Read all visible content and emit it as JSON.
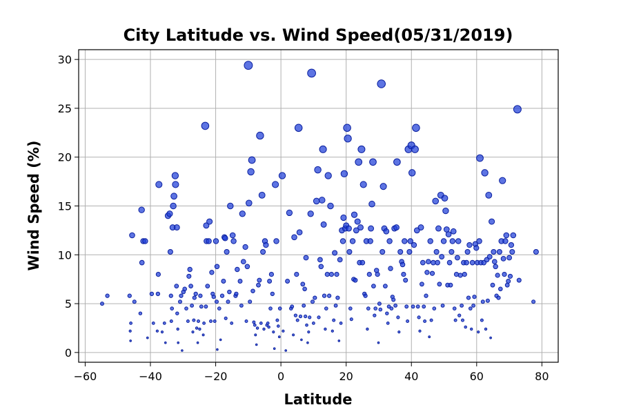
{
  "chart_data": {
    "type": "scatter",
    "title": "City Latitude vs. Wind Speed(05/31/2019)",
    "xlabel": "Latitude",
    "ylabel": "Wind Speed (%)",
    "xlim": [
      -62,
      85
    ],
    "ylim": [
      -1,
      31
    ],
    "xticks": [
      -60,
      -40,
      -20,
      0,
      20,
      40,
      60,
      80
    ],
    "yticks": [
      0,
      5,
      10,
      15,
      20,
      25,
      30
    ],
    "grid": true,
    "legend": "none",
    "colors": {
      "fill": "#1f3fd8",
      "edge": "#0a1f9e",
      "grid": "#b0b0b0"
    },
    "points": [
      [
        -54.8,
        5.0
      ],
      [
        -53.2,
        5.8
      ],
      [
        -46.4,
        5.8
      ],
      [
        -46.0,
        3.0
      ],
      [
        -46.2,
        2.2
      ],
      [
        -46.1,
        1.2
      ],
      [
        -45.6,
        12.0
      ],
      [
        -44.9,
        5.2
      ],
      [
        -43.1,
        4.0
      ],
      [
        -42.6,
        9.2
      ],
      [
        -42.7,
        14.6
      ],
      [
        -42.2,
        11.4
      ],
      [
        -41.6,
        11.4
      ],
      [
        -40.9,
        1.5
      ],
      [
        -39.6,
        6.0
      ],
      [
        -39.1,
        3.0
      ],
      [
        -37.9,
        2.2
      ],
      [
        -37.7,
        6.0
      ],
      [
        -37.4,
        17.2
      ],
      [
        -37.6,
        8.0
      ],
      [
        -36.4,
        2.1
      ],
      [
        -35.7,
        3.0
      ],
      [
        -35.4,
        1.0
      ],
      [
        -34.6,
        14.0
      ],
      [
        -34.1,
        14.2
      ],
      [
        -33.9,
        10.3
      ],
      [
        -33.7,
        5.8
      ],
      [
        -33.4,
        4.5
      ],
      [
        -33.6,
        3.2
      ],
      [
        -33.2,
        12.8
      ],
      [
        -33.0,
        15.0
      ],
      [
        -32.8,
        16.0
      ],
      [
        -32.4,
        18.1
      ],
      [
        -32.3,
        17.2
      ],
      [
        -31.9,
        12.8
      ],
      [
        -32.0,
        6.8
      ],
      [
        -31.8,
        4.0
      ],
      [
        -31.6,
        2.4
      ],
      [
        -31.5,
        1.0
      ],
      [
        -30.9,
        5.2
      ],
      [
        -30.6,
        5.8
      ],
      [
        -30.3,
        0.2
      ],
      [
        -29.9,
        6.2
      ],
      [
        -29.5,
        6.5
      ],
      [
        -29.0,
        4.5
      ],
      [
        -28.5,
        3.2
      ],
      [
        -28.2,
        7.8
      ],
      [
        -27.9,
        8.5
      ],
      [
        -27.6,
        6.8
      ],
      [
        -27.3,
        4.8
      ],
      [
        -27.0,
        2.1
      ],
      [
        -26.7,
        3.3
      ],
      [
        -26.5,
        5.6
      ],
      [
        -26.1,
        6.0
      ],
      [
        -25.8,
        2.5
      ],
      [
        -25.5,
        1.0
      ],
      [
        -25.3,
        3.2
      ],
      [
        -24.9,
        2.4
      ],
      [
        -24.7,
        5.8
      ],
      [
        -24.4,
        4.7
      ],
      [
        -23.8,
        1.8
      ],
      [
        -23.6,
        3.0
      ],
      [
        -23.2,
        23.2
      ],
      [
        -22.9,
        13.0
      ],
      [
        -22.8,
        11.4
      ],
      [
        -23.0,
        4.7
      ],
      [
        -22.5,
        6.8
      ],
      [
        -22.1,
        11.4
      ],
      [
        -21.9,
        13.4
      ],
      [
        -21.5,
        3.2
      ],
      [
        -21.2,
        8.2
      ],
      [
        -20.9,
        6.0
      ],
      [
        -20.6,
        5.7
      ],
      [
        -20.3,
        3.2
      ],
      [
        -19.9,
        11.4
      ],
      [
        -19.7,
        5.2
      ],
      [
        -19.5,
        0.3
      ],
      [
        -19.6,
        8.8
      ],
      [
        -18.9,
        4.5
      ],
      [
        -18.5,
        1.3
      ],
      [
        -18.0,
        5.8
      ],
      [
        -17.6,
        7.3
      ],
      [
        -17.3,
        11.8
      ],
      [
        -17.1,
        11.7
      ],
      [
        -16.9,
        3.5
      ],
      [
        -16.6,
        10.3
      ],
      [
        -16.2,
        5.2
      ],
      [
        -15.8,
        6.2
      ],
      [
        -15.5,
        15.0
      ],
      [
        -15.1,
        3.0
      ],
      [
        -14.8,
        12.0
      ],
      [
        -14.5,
        11.4
      ],
      [
        -13.9,
        5.8
      ],
      [
        -13.7,
        6.0
      ],
      [
        -13.4,
        8.5
      ],
      [
        -12.5,
        7.3
      ],
      [
        -12.1,
        4.8
      ],
      [
        -11.8,
        14.2
      ],
      [
        -11.5,
        9.3
      ],
      [
        -10.9,
        10.8
      ],
      [
        -10.6,
        3.2
      ],
      [
        -10.3,
        8.8
      ],
      [
        -10.0,
        29.4
      ],
      [
        -9.8,
        15.3
      ],
      [
        -9.5,
        5.2
      ],
      [
        -9.2,
        18.5
      ],
      [
        -8.9,
        19.7
      ],
      [
        -8.6,
        6.3
      ],
      [
        -8.3,
        3.1
      ],
      [
        -8.0,
        2.8
      ],
      [
        -7.8,
        1.8
      ],
      [
        -7.5,
        0.8
      ],
      [
        -7.2,
        2.5
      ],
      [
        -6.9,
        6.9
      ],
      [
        -6.6,
        7.4
      ],
      [
        -6.4,
        22.2
      ],
      [
        -6.1,
        3.0
      ],
      [
        -5.8,
        16.1
      ],
      [
        -5.5,
        10.3
      ],
      [
        -5.2,
        2.4
      ],
      [
        -4.9,
        11.4
      ],
      [
        -4.6,
        11.0
      ],
      [
        -4.3,
        2.8
      ],
      [
        -4.0,
        3.0
      ],
      [
        -3.7,
        2.6
      ],
      [
        -3.5,
        7.3
      ],
      [
        -3.2,
        4.5
      ],
      [
        -2.9,
        8.0
      ],
      [
        -2.6,
        6.0
      ],
      [
        -2.3,
        2.1
      ],
      [
        -2.0,
        0.4
      ],
      [
        -1.7,
        17.2
      ],
      [
        -1.4,
        11.4
      ],
      [
        -1.1,
        3.3
      ],
      [
        -0.8,
        2.7
      ],
      [
        -0.5,
        1.6
      ],
      [
        -0.3,
        4.5
      ],
      [
        0.4,
        18.1
      ],
      [
        0.7,
        2.2
      ],
      [
        1.5,
        0.2
      ],
      [
        2.0,
        7.3
      ],
      [
        2.6,
        14.3
      ],
      [
        3.1,
        4.5
      ],
      [
        3.4,
        4.7
      ],
      [
        3.8,
        1.8
      ],
      [
        4.1,
        11.8
      ],
      [
        4.5,
        3.8
      ],
      [
        4.8,
        8.0
      ],
      [
        5.1,
        3.3
      ],
      [
        5.4,
        23.0
      ],
      [
        5.7,
        12.3
      ],
      [
        6.0,
        3.7
      ],
      [
        6.3,
        1.3
      ],
      [
        6.7,
        7.0
      ],
      [
        7.0,
        4.8
      ],
      [
        7.3,
        6.5
      ],
      [
        7.5,
        3.7
      ],
      [
        7.7,
        9.7
      ],
      [
        7.9,
        2.8
      ],
      [
        8.2,
        1.0
      ],
      [
        8.5,
        2.1
      ],
      [
        8.8,
        3.6
      ],
      [
        9.1,
        14.2
      ],
      [
        9.4,
        28.6
      ],
      [
        9.7,
        5.2
      ],
      [
        10.0,
        3.0
      ],
      [
        10.4,
        5.6
      ],
      [
        10.9,
        15.5
      ],
      [
        11.3,
        18.7
      ],
      [
        11.6,
        3.6
      ],
      [
        12.0,
        9.5
      ],
      [
        12.3,
        8.8
      ],
      [
        12.6,
        15.6
      ],
      [
        12.9,
        20.8
      ],
      [
        13.1,
        13.1
      ],
      [
        13.3,
        5.8
      ],
      [
        13.6,
        2.4
      ],
      [
        13.9,
        4.5
      ],
      [
        14.2,
        8.0
      ],
      [
        14.5,
        18.1
      ],
      [
        14.8,
        5.8
      ],
      [
        15.2,
        15.0
      ],
      [
        15.5,
        8.0
      ],
      [
        15.8,
        2.2
      ],
      [
        16.2,
        3.3
      ],
      [
        16.5,
        10.2
      ],
      [
        16.8,
        4.8
      ],
      [
        17.1,
        8.0
      ],
      [
        17.4,
        5.6
      ],
      [
        17.8,
        1.2
      ],
      [
        18.1,
        9.5
      ],
      [
        18.4,
        3.0
      ],
      [
        18.7,
        12.5
      ],
      [
        19.0,
        11.4
      ],
      [
        19.2,
        13.8
      ],
      [
        19.4,
        18.3
      ],
      [
        19.7,
        12.7
      ],
      [
        20.0,
        13.0
      ],
      [
        20.3,
        23.0
      ],
      [
        20.5,
        21.9
      ],
      [
        20.8,
        12.7
      ],
      [
        21.0,
        10.3
      ],
      [
        21.3,
        4.5
      ],
      [
        21.6,
        3.4
      ],
      [
        22.0,
        11.4
      ],
      [
        22.3,
        7.5
      ],
      [
        22.5,
        14.1
      ],
      [
        22.8,
        7.4
      ],
      [
        23.1,
        12.5
      ],
      [
        23.5,
        13.4
      ],
      [
        23.8,
        19.5
      ],
      [
        24.1,
        9.2
      ],
      [
        24.4,
        12.8
      ],
      [
        24.7,
        20.8
      ],
      [
        25.0,
        9.2
      ],
      [
        25.3,
        17.2
      ],
      [
        25.6,
        6.0
      ],
      [
        25.9,
        5.8
      ],
      [
        26.2,
        11.4
      ],
      [
        26.5,
        2.4
      ],
      [
        26.8,
        4.5
      ],
      [
        27.1,
        8.0
      ],
      [
        27.4,
        11.4
      ],
      [
        27.6,
        12.7
      ],
      [
        27.9,
        15.2
      ],
      [
        28.2,
        19.5
      ],
      [
        28.4,
        6.8
      ],
      [
        28.7,
        3.8
      ],
      [
        29.0,
        4.5
      ],
      [
        29.3,
        8.4
      ],
      [
        29.6,
        8.0
      ],
      [
        29.9,
        1.0
      ],
      [
        30.2,
        5.0
      ],
      [
        30.5,
        4.4
      ],
      [
        30.8,
        27.5
      ],
      [
        31.1,
        10.3
      ],
      [
        31.4,
        17.0
      ],
      [
        31.7,
        12.7
      ],
      [
        32.0,
        6.8
      ],
      [
        32.3,
        12.4
      ],
      [
        32.5,
        4.0
      ],
      [
        32.8,
        3.0
      ],
      [
        33.1,
        4.7
      ],
      [
        33.3,
        11.4
      ],
      [
        33.6,
        8.6
      ],
      [
        33.9,
        4.5
      ],
      [
        34.2,
        5.7
      ],
      [
        34.5,
        5.4
      ],
      [
        34.8,
        12.7
      ],
      [
        35.1,
        4.8
      ],
      [
        35.4,
        12.8
      ],
      [
        35.6,
        19.5
      ],
      [
        35.9,
        3.6
      ],
      [
        36.2,
        2.1
      ],
      [
        36.6,
        10.3
      ],
      [
        37.0,
        9.3
      ],
      [
        37.3,
        9.0
      ],
      [
        37.6,
        8.0
      ],
      [
        37.9,
        11.4
      ],
      [
        38.2,
        7.4
      ],
      [
        38.5,
        4.7
      ],
      [
        38.8,
        3.2
      ],
      [
        39.1,
        20.8
      ],
      [
        39.4,
        10.3
      ],
      [
        39.7,
        11.4
      ],
      [
        40.0,
        21.2
      ],
      [
        40.2,
        18.4
      ],
      [
        40.5,
        4.7
      ],
      [
        40.8,
        11.0
      ],
      [
        41.1,
        20.8
      ],
      [
        41.4,
        23.0
      ],
      [
        41.7,
        12.5
      ],
      [
        42.0,
        4.7
      ],
      [
        42.3,
        3.6
      ],
      [
        42.6,
        2.2
      ],
      [
        42.9,
        12.8
      ],
      [
        43.2,
        7.0
      ],
      [
        43.5,
        9.2
      ],
      [
        43.8,
        4.7
      ],
      [
        44.1,
        3.2
      ],
      [
        44.5,
        5.8
      ],
      [
        44.8,
        8.2
      ],
      [
        45.2,
        9.3
      ],
      [
        45.5,
        1.6
      ],
      [
        45.8,
        11.4
      ],
      [
        46.1,
        3.3
      ],
      [
        46.4,
        8.1
      ],
      [
        46.7,
        9.2
      ],
      [
        47.0,
        4.5
      ],
      [
        47.4,
        15.5
      ],
      [
        47.7,
        10.3
      ],
      [
        48.0,
        9.2
      ],
      [
        48.3,
        12.7
      ],
      [
        48.6,
        7.0
      ],
      [
        49.0,
        16.1
      ],
      [
        49.3,
        9.8
      ],
      [
        49.6,
        4.8
      ],
      [
        49.9,
        11.4
      ],
      [
        50.2,
        15.8
      ],
      [
        50.5,
        14.5
      ],
      [
        50.8,
        12.6
      ],
      [
        51.1,
        6.9
      ],
      [
        51.4,
        12.1
      ],
      [
        51.7,
        9.2
      ],
      [
        52.0,
        6.9
      ],
      [
        52.3,
        10.3
      ],
      [
        52.6,
        11.4
      ],
      [
        52.9,
        12.4
      ],
      [
        53.2,
        4.5
      ],
      [
        53.5,
        3.3
      ],
      [
        53.8,
        8.0
      ],
      [
        54.1,
        9.7
      ],
      [
        54.4,
        11.4
      ],
      [
        54.7,
        3.8
      ],
      [
        55.0,
        7.9
      ],
      [
        55.4,
        4.8
      ],
      [
        55.7,
        3.3
      ],
      [
        56.0,
        9.2
      ],
      [
        56.3,
        8.0
      ],
      [
        56.6,
        2.6
      ],
      [
        56.9,
        9.2
      ],
      [
        57.2,
        10.3
      ],
      [
        57.5,
        5.6
      ],
      [
        57.8,
        11.0
      ],
      [
        58.1,
        4.5
      ],
      [
        58.4,
        2.4
      ],
      [
        58.7,
        9.2
      ],
      [
        59.0,
        4.8
      ],
      [
        59.3,
        5.7
      ],
      [
        59.6,
        11.1
      ],
      [
        59.9,
        10.7
      ],
      [
        60.2,
        9.2
      ],
      [
        60.5,
        2.1
      ],
      [
        60.8,
        11.4
      ],
      [
        61.0,
        19.9
      ],
      [
        61.3,
        9.2
      ],
      [
        61.6,
        3.3
      ],
      [
        61.9,
        5.2
      ],
      [
        62.2,
        9.2
      ],
      [
        62.5,
        18.4
      ],
      [
        62.8,
        2.4
      ],
      [
        63.1,
        9.5
      ],
      [
        63.4,
        5.3
      ],
      [
        63.7,
        16.1
      ],
      [
        64.0,
        9.8
      ],
      [
        64.3,
        1.5
      ],
      [
        64.6,
        13.4
      ],
      [
        64.9,
        6.9
      ],
      [
        65.2,
        10.3
      ],
      [
        65.5,
        9.3
      ],
      [
        65.8,
        8.8
      ],
      [
        66.1,
        5.8
      ],
      [
        66.4,
        7.9
      ],
      [
        66.7,
        5.6
      ],
      [
        67.0,
        10.3
      ],
      [
        67.3,
        6.5
      ],
      [
        67.6,
        11.4
      ],
      [
        67.9,
        17.6
      ],
      [
        68.2,
        9.6
      ],
      [
        68.5,
        8.0
      ],
      [
        68.8,
        11.4
      ],
      [
        69.1,
        12.0
      ],
      [
        69.4,
        6.9
      ],
      [
        69.7,
        7.3
      ],
      [
        70.0,
        9.7
      ],
      [
        70.3,
        7.8
      ],
      [
        70.6,
        11.0
      ],
      [
        70.9,
        10.3
      ],
      [
        71.2,
        12.0
      ],
      [
        72.5,
        24.9
      ],
      [
        73.0,
        7.4
      ],
      [
        77.4,
        5.2
      ],
      [
        78.2,
        10.3
      ]
    ]
  }
}
